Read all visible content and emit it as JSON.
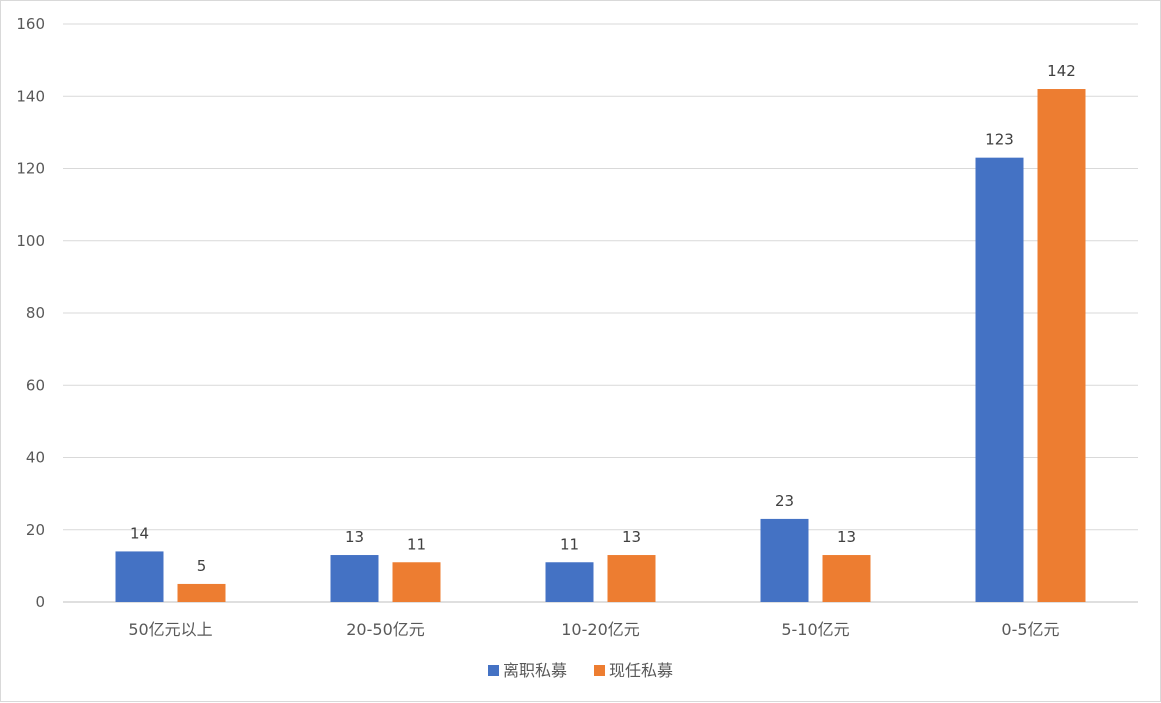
{
  "chart_data": {
    "type": "bar",
    "categories": [
      "50亿元以上",
      "20-50亿元",
      "10-20亿元",
      "5-10亿元",
      "0-5亿元"
    ],
    "series": [
      {
        "name": "离职私募",
        "color": "#4472C4",
        "values": [
          14,
          13,
          11,
          23,
          123
        ]
      },
      {
        "name": "现任私募",
        "color": "#ED7D31",
        "values": [
          5,
          11,
          13,
          13,
          142
        ]
      }
    ],
    "ylim": [
      0,
      160
    ],
    "yticks": [
      0,
      20,
      40,
      60,
      80,
      100,
      120,
      140,
      160
    ],
    "grid": true,
    "legend_position": "bottom",
    "data_labels": true
  }
}
